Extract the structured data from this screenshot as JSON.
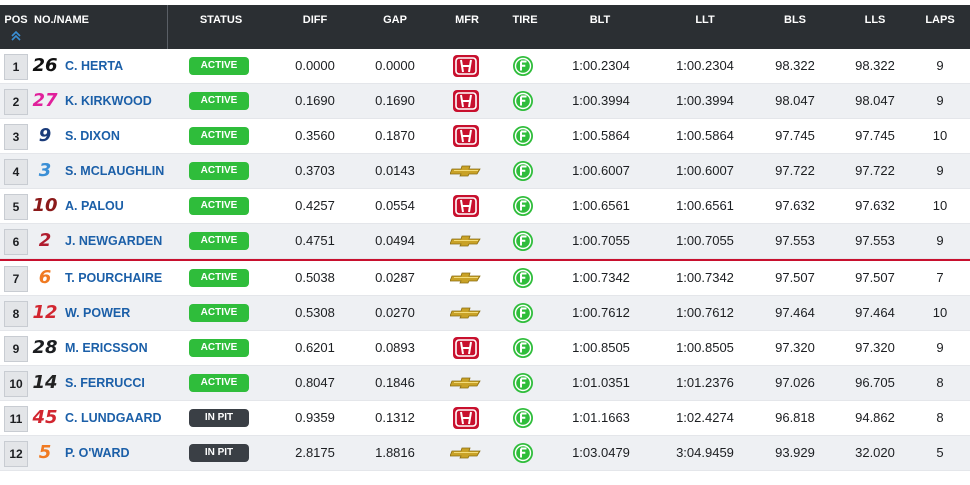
{
  "header": {
    "pos": "POS",
    "no_name": "NO./NAME",
    "status": "STATUS",
    "diff": "DIFF",
    "gap": "GAP",
    "mfr": "MFR",
    "tire": "TIRE",
    "blt": "BLT",
    "llt": "LLT",
    "bls": "BLS",
    "lls": "LLS",
    "laps": "LAPS"
  },
  "colors": {
    "active": "#2fbd3b",
    "in_pit": "#3a3f45",
    "honda": "#c8102e",
    "chevy": "#c9a227",
    "tire": "#2fbd3b",
    "cutline": "#c8102e"
  },
  "rows": [
    {
      "pos": "1",
      "num": "26",
      "num_color": "#111111",
      "name": "C. HERTA",
      "status": "ACTIVE",
      "diff": "0.0000",
      "gap": "0.0000",
      "mfr": "honda",
      "blt": "1:00.2304",
      "llt": "1:00.2304",
      "bls": "98.322",
      "lls": "98.322",
      "laps": "9"
    },
    {
      "pos": "2",
      "num": "27",
      "num_color": "#e0209b",
      "name": "K. KIRKWOOD",
      "status": "ACTIVE",
      "diff": "0.1690",
      "gap": "0.1690",
      "mfr": "honda",
      "blt": "1:00.3994",
      "llt": "1:00.3994",
      "bls": "98.047",
      "lls": "98.047",
      "laps": "9"
    },
    {
      "pos": "3",
      "num": "9",
      "num_color": "#1a3b7a",
      "name": "S. DIXON",
      "status": "ACTIVE",
      "diff": "0.3560",
      "gap": "0.1870",
      "mfr": "honda",
      "blt": "1:00.5864",
      "llt": "1:00.5864",
      "bls": "97.745",
      "lls": "97.745",
      "laps": "10"
    },
    {
      "pos": "4",
      "num": "3",
      "num_color": "#3a8fd6",
      "name": "S. MCLAUGHLIN",
      "status": "ACTIVE",
      "diff": "0.3703",
      "gap": "0.0143",
      "mfr": "chevrolet",
      "blt": "1:00.6007",
      "llt": "1:00.6007",
      "bls": "97.722",
      "lls": "97.722",
      "laps": "9"
    },
    {
      "pos": "5",
      "num": "10",
      "num_color": "#8b1a1a",
      "name": "A. PALOU",
      "status": "ACTIVE",
      "diff": "0.4257",
      "gap": "0.0554",
      "mfr": "honda",
      "blt": "1:00.6561",
      "llt": "1:00.6561",
      "bls": "97.632",
      "lls": "97.632",
      "laps": "10"
    },
    {
      "pos": "6",
      "num": "2",
      "num_color": "#b01c2e",
      "name": "J. NEWGARDEN",
      "status": "ACTIVE",
      "diff": "0.4751",
      "gap": "0.0494",
      "mfr": "chevrolet",
      "blt": "1:00.7055",
      "llt": "1:00.7055",
      "bls": "97.553",
      "lls": "97.553",
      "laps": "9"
    },
    {
      "pos": "7",
      "num": "6",
      "num_color": "#f07a22",
      "name": "T. POURCHAIRE",
      "status": "ACTIVE",
      "diff": "0.5038",
      "gap": "0.0287",
      "mfr": "chevrolet",
      "blt": "1:00.7342",
      "llt": "1:00.7342",
      "bls": "97.507",
      "lls": "97.507",
      "laps": "7"
    },
    {
      "pos": "8",
      "num": "12",
      "num_color": "#d22630",
      "name": "W. POWER",
      "status": "ACTIVE",
      "diff": "0.5308",
      "gap": "0.0270",
      "mfr": "chevrolet",
      "blt": "1:00.7612",
      "llt": "1:00.7612",
      "bls": "97.464",
      "lls": "97.464",
      "laps": "10"
    },
    {
      "pos": "9",
      "num": "28",
      "num_color": "#1c1e21",
      "name": "M. ERICSSON",
      "status": "ACTIVE",
      "diff": "0.6201",
      "gap": "0.0893",
      "mfr": "honda",
      "blt": "1:00.8505",
      "llt": "1:00.8505",
      "bls": "97.320",
      "lls": "97.320",
      "laps": "9"
    },
    {
      "pos": "10",
      "num": "14",
      "num_color": "#222222",
      "name": "S. FERRUCCI",
      "status": "ACTIVE",
      "diff": "0.8047",
      "gap": "0.1846",
      "mfr": "chevrolet",
      "blt": "1:01.0351",
      "llt": "1:01.2376",
      "bls": "97.026",
      "lls": "96.705",
      "laps": "8"
    },
    {
      "pos": "11",
      "num": "45",
      "num_color": "#d22630",
      "name": "C. LUNDGAARD",
      "status": "IN PIT",
      "diff": "0.9359",
      "gap": "0.1312",
      "mfr": "honda",
      "blt": "1:01.1663",
      "llt": "1:02.4274",
      "bls": "96.818",
      "lls": "94.862",
      "laps": "8"
    },
    {
      "pos": "12",
      "num": "5",
      "num_color": "#f07a22",
      "name": "P. O'WARD",
      "status": "IN PIT",
      "diff": "2.8175",
      "gap": "1.8816",
      "mfr": "chevrolet",
      "blt": "1:03.0479",
      "llt": "3:04.9459",
      "bls": "93.929",
      "lls": "32.020",
      "laps": "5"
    }
  ]
}
